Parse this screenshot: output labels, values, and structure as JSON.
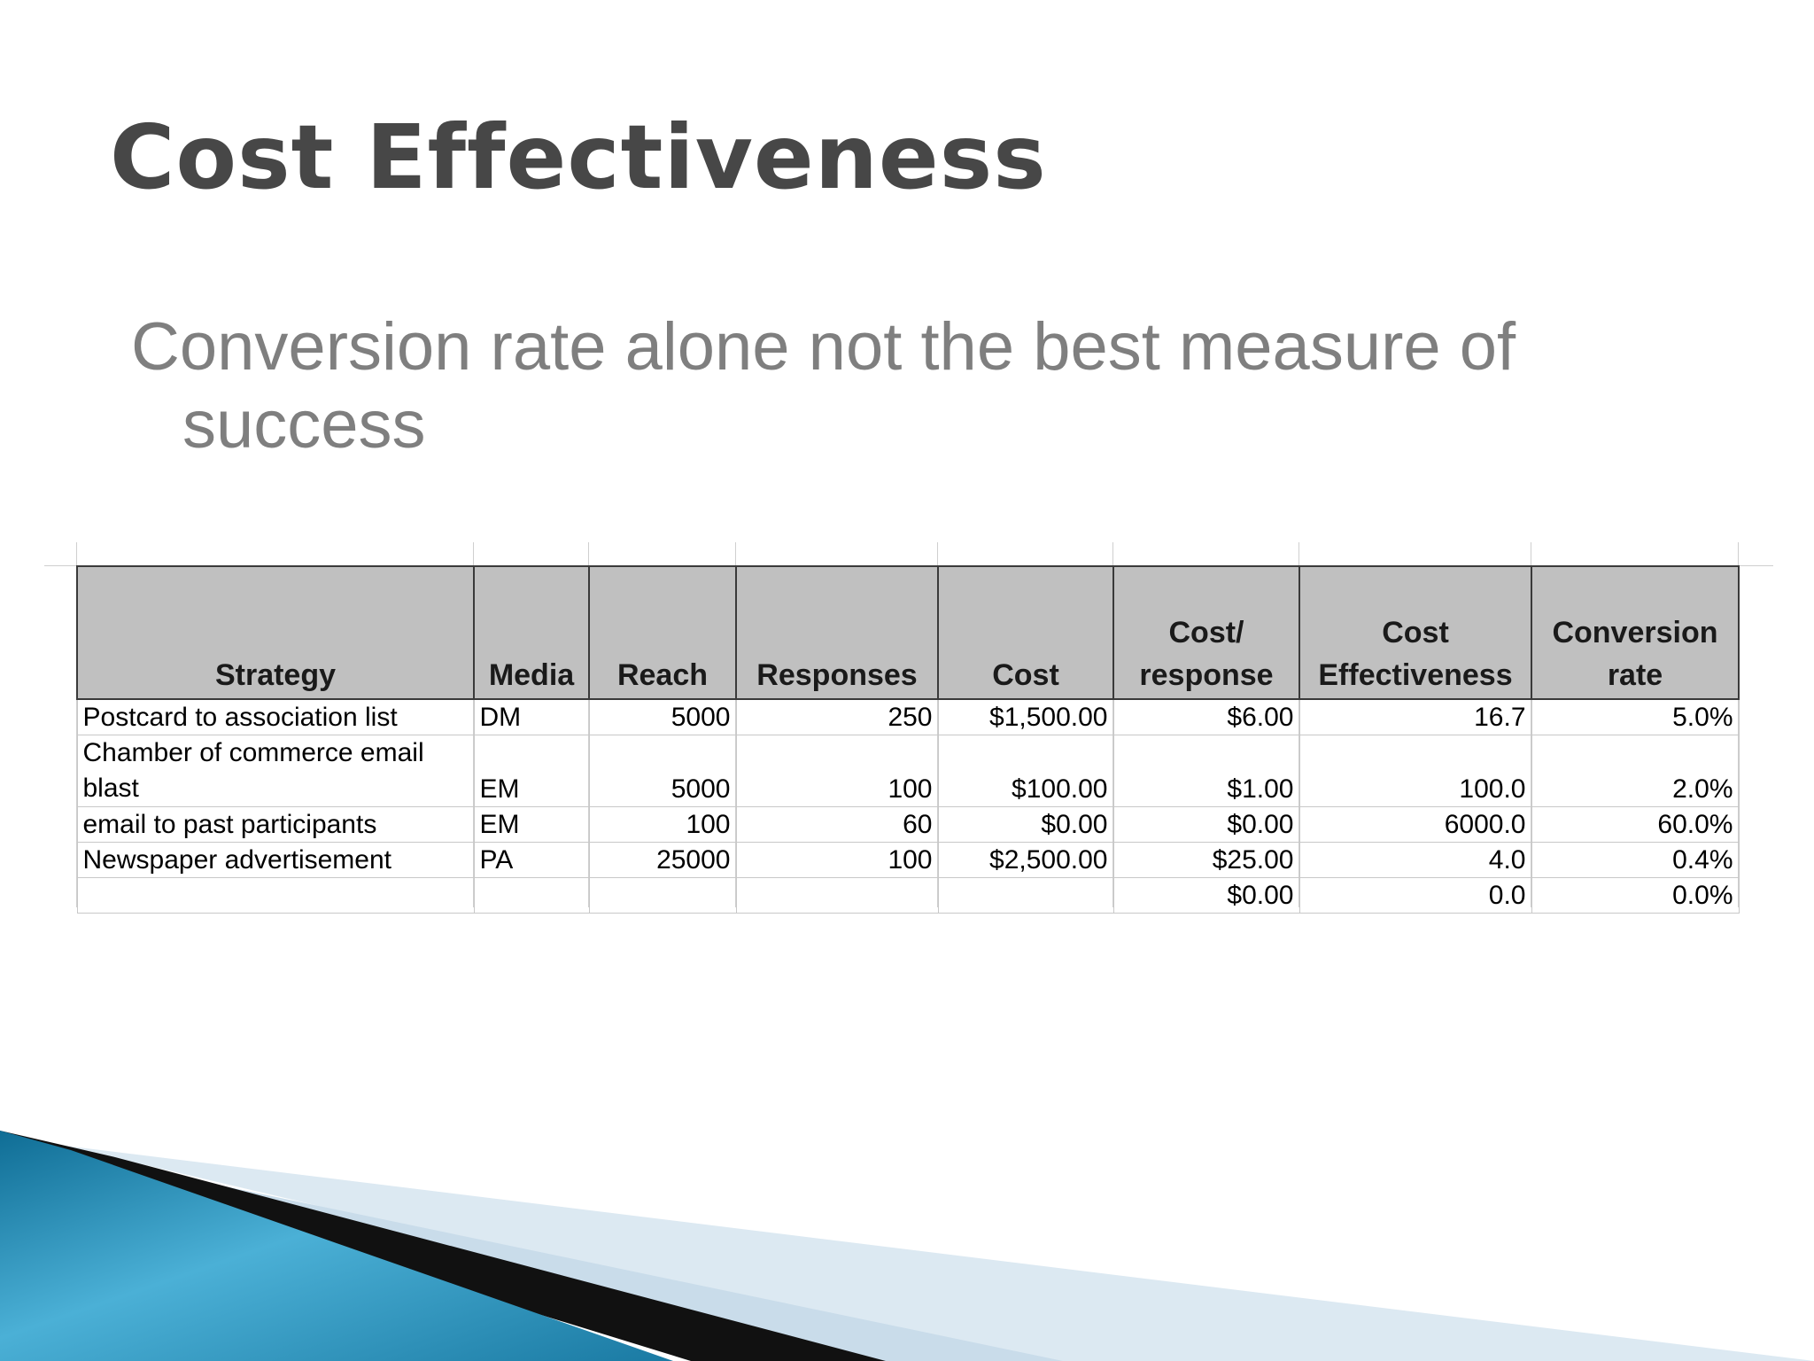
{
  "slide": {
    "title": "Cost Effectiveness",
    "bullet_line1": "Conversion rate alone not the best measure of",
    "bullet_line2": "success"
  },
  "table": {
    "headers": [
      {
        "label": "Strategy"
      },
      {
        "label": "Media"
      },
      {
        "label": "Reach"
      },
      {
        "label": "Responses"
      },
      {
        "label": "Cost"
      },
      {
        "label": "Cost/ response"
      },
      {
        "label": "Cost Effectiveness"
      },
      {
        "label": "Conversion rate"
      }
    ],
    "rows": [
      {
        "strategy": "Postcard to association list",
        "media": "DM",
        "reach": "5000",
        "responses": "250",
        "cost": "$1,500.00",
        "cost_per_response": "$6.00",
        "cost_effectiveness": "16.7",
        "conversion_rate": "5.0%"
      },
      {
        "strategy": "Chamber of commerce email blast",
        "media": "EM",
        "reach": "5000",
        "responses": "100",
        "cost": "$100.00",
        "cost_per_response": "$1.00",
        "cost_effectiveness": "100.0",
        "conversion_rate": "2.0%"
      },
      {
        "strategy": "email to past participants",
        "media": "EM",
        "reach": "100",
        "responses": "60",
        "cost": "$0.00",
        "cost_per_response": "$0.00",
        "cost_effectiveness": "6000.0",
        "conversion_rate": "60.0%"
      },
      {
        "strategy": "Newspaper advertisement",
        "media": "PA",
        "reach": "25000",
        "responses": "100",
        "cost": "$2,500.00",
        "cost_per_response": "$25.00",
        "cost_effectiveness": "4.0",
        "conversion_rate": "0.4%"
      },
      {
        "strategy": "",
        "media": "",
        "reach": "",
        "responses": "",
        "cost": "",
        "cost_per_response": "$0.00",
        "cost_effectiveness": "0.0",
        "conversion_rate": "0.0%"
      }
    ]
  },
  "colors": {
    "title": "#474747",
    "bullet": "#7f7f7f",
    "header_fill": "#c0c0c0",
    "swoosh_blue": "#1f7fa6",
    "swoosh_light": "#d9e8f2",
    "swoosh_dark": "#111111"
  }
}
